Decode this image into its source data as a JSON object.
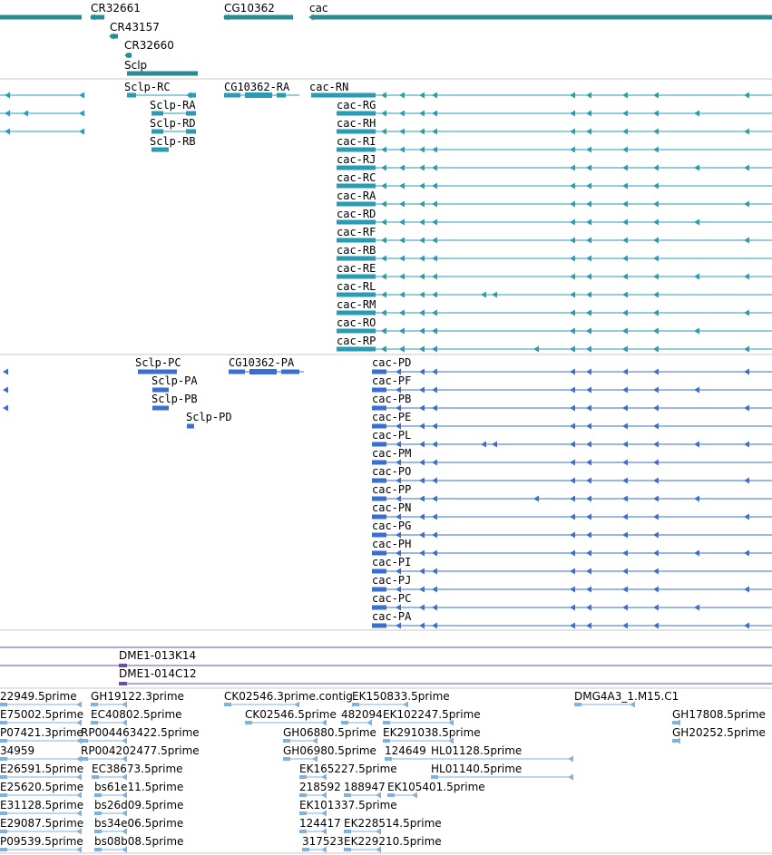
{
  "colors": {
    "gene": "#2a8c92",
    "transcript": "#2a9bb5",
    "protein": "#3a6ed0",
    "clone": "#6b4ca8",
    "est": "#7fb2dc",
    "divider": "#c8c8c8"
  },
  "gene_track": {
    "genes": [
      {
        "name": "CR32661"
      },
      {
        "name": "CG10362"
      },
      {
        "name": "cac"
      },
      {
        "name": "CR43157"
      },
      {
        "name": "CR32660"
      },
      {
        "name": "Sclp"
      }
    ]
  },
  "transcript_track": {
    "labels": [
      "Sclp-RC",
      "CG10362-RA",
      "cac-RN",
      "Sclp-RA",
      "cac-RG",
      "Sclp-RD",
      "cac-RH",
      "Sclp-RB",
      "cac-RI",
      "cac-RJ",
      "cac-RC",
      "cac-RA",
      "cac-RD",
      "cac-RF",
      "cac-RB",
      "cac-RE",
      "cac-RL",
      "cac-RM",
      "cac-RO",
      "cac-RP"
    ]
  },
  "protein_track": {
    "labels": [
      "Sclp-PC",
      "CG10362-PA",
      "cac-PD",
      "Sclp-PA",
      "cac-PF",
      "Sclp-PB",
      "cac-PB",
      "Sclp-PD",
      "cac-PE",
      "cac-PL",
      "cac-PM",
      "cac-PO",
      "cac-PP",
      "cac-PN",
      "cac-PG",
      "cac-PH",
      "cac-PI",
      "cac-PJ",
      "cac-PC",
      "cac-PA"
    ]
  },
  "clone_track": {
    "labels": [
      "DME1-013K14",
      "DME1-014C12"
    ]
  },
  "est_track": {
    "labels": [
      "22949.5prime",
      "GH19122.3prime",
      "CK02546.3prime.contig",
      "EK150833.5prime",
      "DMG4A3_1.M15.C1",
      "E75002.5prime",
      "EC40802.5prime",
      "CK02546.5prime",
      "482094",
      "EK102247.5prime",
      "GH17808.5prime",
      "P07421.3prime",
      "RP004463422.5prime",
      "GH06880.5prime",
      "EK291038.5prime",
      "GH20252.5prime",
      "34959",
      "RP004202477.5prime",
      "GH06980.5prime",
      "124649",
      "HL01128.5prime",
      "E26591.5prime",
      "EC38673.5prime",
      "EK165227.5prime",
      "HL01140.5prime",
      "E25620.5prime",
      "bs61e11.5prime",
      "218592",
      "188947",
      "EK105401.5prime",
      "E31128.5prime",
      "bs26d09.5prime",
      "EK101337.5prime",
      "E29087.5prime",
      "bs34e06.5prime",
      "124417",
      "EK228514.5prime",
      "P09539.5prime",
      "bs08b08.5prime",
      "317523",
      "EK229210.5prime"
    ]
  }
}
